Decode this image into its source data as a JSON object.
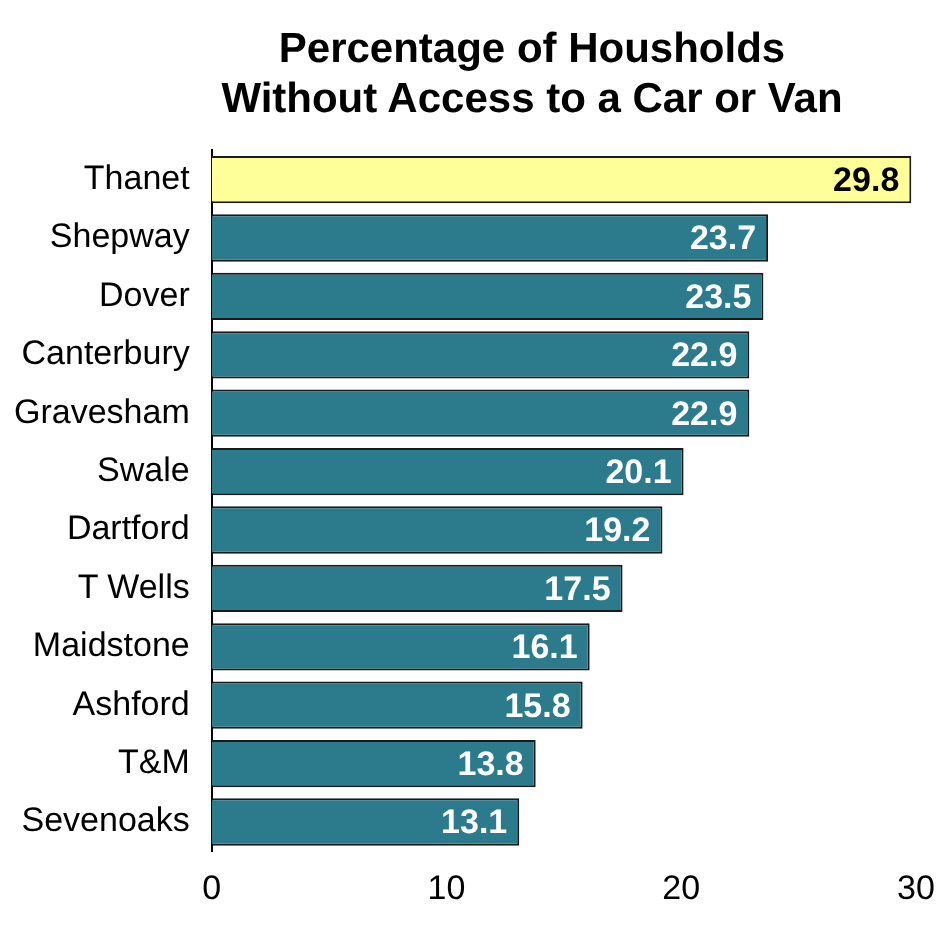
{
  "chart_data": {
    "type": "bar",
    "orientation": "horizontal",
    "title": "Percentage of Housholds\nWithout Access to a Car or Van",
    "categories": [
      "Thanet",
      "Shepway",
      "Dover",
      "Canterbury",
      "Gravesham",
      "Swale",
      "Dartford",
      "T Wells",
      "Maidstone",
      "Ashford",
      "T&M",
      "Sevenoaks"
    ],
    "values": [
      29.8,
      23.7,
      23.5,
      22.9,
      22.9,
      20.1,
      19.2,
      17.5,
      16.1,
      15.8,
      13.8,
      13.1
    ],
    "colors": [
      "#ffff99",
      "#2b7b8c",
      "#2b7b8c",
      "#2b7b8c",
      "#2b7b8c",
      "#2b7b8c",
      "#2b7b8c",
      "#2b7b8c",
      "#2b7b8c",
      "#2b7b8c",
      "#2b7b8c",
      "#2b7b8c"
    ],
    "xlim": [
      0,
      30
    ],
    "xticks": [
      0,
      10,
      20,
      30
    ],
    "grid": false,
    "legend": false,
    "data_labels": true
  }
}
